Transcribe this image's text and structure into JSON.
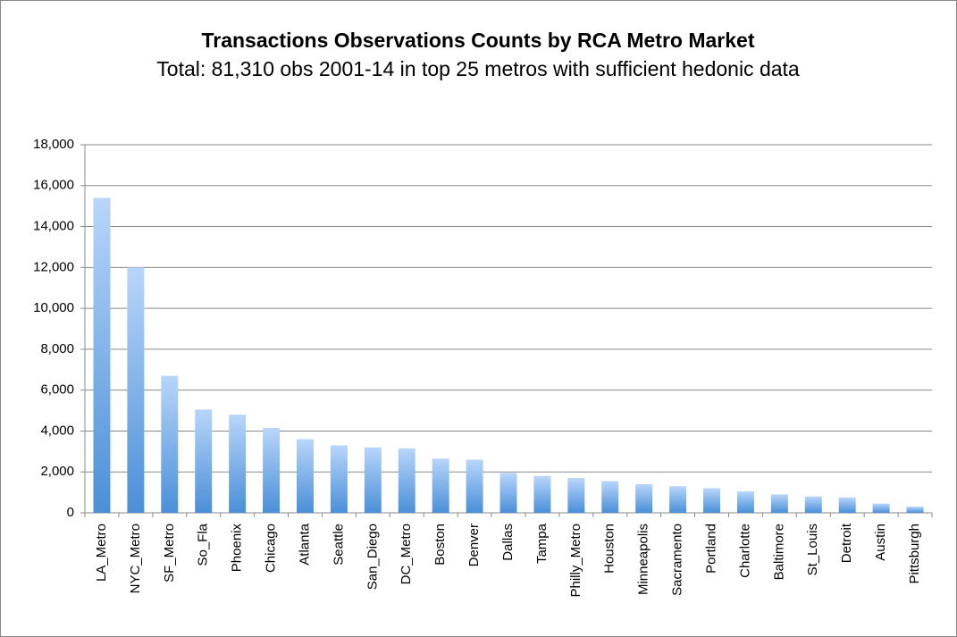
{
  "chart_data": {
    "type": "bar",
    "title": "Transactions Observations Counts by RCA Metro Market",
    "subtitle": "Total: 81,310 obs 2001-14 in top 25 metros with sufficient hedonic data",
    "categories": [
      "LA_Metro",
      "NYC_Metro",
      "SF_Metro",
      "So_Fla",
      "Phoenix",
      "Chicago",
      "Atlanta",
      "Seattle",
      "San_Diego",
      "DC_Metro",
      "Boston",
      "Denver",
      "Dallas",
      "Tampa",
      "Philly_Metro",
      "Houston",
      "Minneapolis",
      "Sacramento",
      "Portland",
      "Charlotte",
      "Baltimore",
      "St_Louis",
      "Detroit",
      "Austin",
      "Pittsburgh"
    ],
    "values": [
      15400,
      12000,
      6700,
      5050,
      4800,
      4150,
      3600,
      3300,
      3200,
      3150,
      2650,
      2600,
      1950,
      1800,
      1700,
      1550,
      1400,
      1300,
      1200,
      1050,
      900,
      800,
      750,
      450,
      300
    ],
    "color": "#4a8fd8",
    "ylim": [
      0,
      18000
    ],
    "yticks": [
      0,
      {
        "value": 2000,
        "label": "2,000"
      },
      {
        "value": 4000,
        "label": "4,000"
      },
      {
        "value": 6000,
        "label": "6,000"
      },
      {
        "value": 8000,
        "label": "8,000"
      },
      {
        "value": 10000,
        "label": "10,000"
      },
      {
        "value": 12000,
        "label": "12,000"
      },
      {
        "value": 14000,
        "label": "14,000"
      },
      {
        "value": 16000,
        "label": "16,000"
      },
      {
        "value": 18000,
        "label": "18,000"
      }
    ],
    "grid": true
  }
}
